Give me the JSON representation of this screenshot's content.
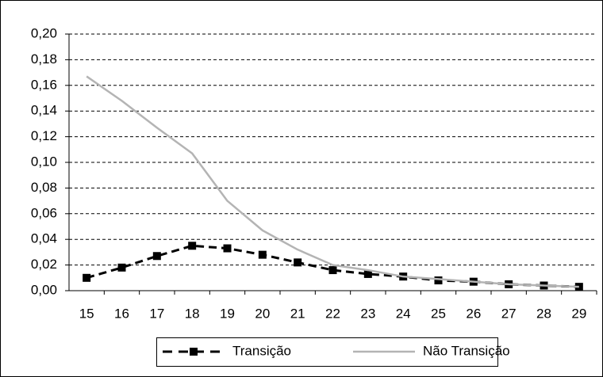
{
  "chart_data": {
    "type": "line",
    "categories": [
      "15",
      "16",
      "17",
      "18",
      "19",
      "20",
      "21",
      "22",
      "23",
      "24",
      "25",
      "26",
      "27",
      "28",
      "29"
    ],
    "series": [
      {
        "name": "Transição",
        "color": "#000000",
        "values": [
          0.01,
          0.018,
          0.027,
          0.035,
          0.033,
          0.028,
          0.022,
          0.016,
          0.013,
          0.011,
          0.008,
          0.007,
          0.005,
          0.004,
          0.003
        ]
      },
      {
        "name": "Não Transição",
        "color": "#b4b4b4",
        "values": [
          0.167,
          0.148,
          0.127,
          0.107,
          0.07,
          0.047,
          0.032,
          0.02,
          0.016,
          0.011,
          0.009,
          0.007,
          0.005,
          0.004,
          0.003
        ]
      }
    ],
    "ylim": [
      0,
      0.2
    ],
    "yticks": [
      {
        "value": 0,
        "label": "0,00"
      },
      {
        "value": 0.02,
        "label": "0,02"
      },
      {
        "value": 0.04,
        "label": "0,04"
      },
      {
        "value": 0.06,
        "label": "0,06"
      },
      {
        "value": 0.08,
        "label": "0,08"
      },
      {
        "value": 0.1,
        "label": "0,10"
      },
      {
        "value": 0.12,
        "label": "0,12"
      },
      {
        "value": 0.14,
        "label": "0,14"
      },
      {
        "value": 0.16,
        "label": "0,16"
      },
      {
        "value": 0.18,
        "label": "0,18"
      },
      {
        "value": 0.2,
        "label": "0,20"
      }
    ],
    "grid": true,
    "legend": "bottom"
  }
}
